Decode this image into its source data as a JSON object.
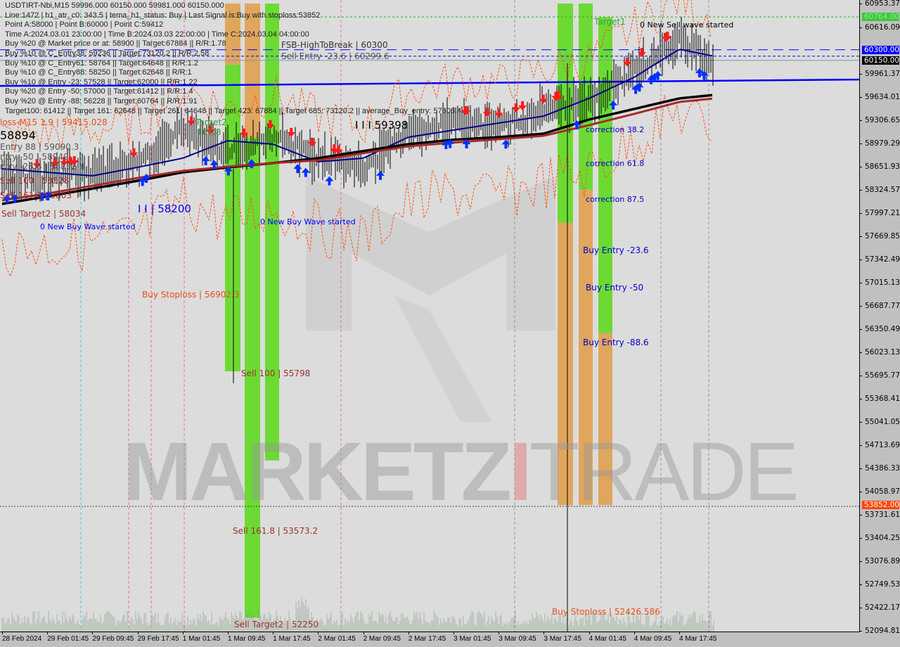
{
  "info_lines": [
    "USDTIRT-Nbi,M15  59996.000 60150.000 59981.000 60150.000",
    "Line:1472 | h1_atr_c0: 343.5 | tema_h1_status: Buy | Last Signal is:Buy with stoploss:53852",
    "Point A:58000 | Point B:60000 | Point C:59412",
    "Time A:2024.03.01 23:00:00 | Time B:2024.03.03 22:00:00 | Time C:2024.03.04 04:00:00",
    "Buy %20 @ Market price or at: 58900 || Target:67884 || R/R:1.78",
    "Buy %10 @ C_Entry38: 59236 || Target:73120.2 || R/R:2.58",
    "Buy %10 @ C_Entry61: 58764 || Target:64648 || R/R:1.2",
    "Buy %10 @ C_Entry88: 58250 || Target:62648 || R/R:1",
    "Buy %10 @ Entry -23: 57528 || Target:62000 || R/R:1.22",
    "Buy %20 @ Entry -50: 57000 || Target:61412 || R/R:1.4",
    "Buy %20 @ Entry -88: 56228 || Target:60764 || R/R:1.91",
    "Target100: 61412 || Target 161: 62648 || Target 261: 64648 || Target 423: 67884 || Target 685: 73120.2 || average_Buy_entry: 57803.4"
  ],
  "annotations": {
    "fsb": "FSB-HighToBreak | 60300",
    "sell_entry": "Sell Entry -23.6 | 60299.6",
    "target2": "Target2",
    "target2_level": "161.8",
    "loss_m15": "loss-M15 1.9 | 59415.028",
    "entry88": "Entry 88 | 59090.3",
    "entry50": "ntry -50 | 58949",
    "entry236": "ntry -23.6 | 58852.4",
    "big_58894": "58894",
    "sell100_a": "Sell 100 | 58528",
    "sell1618_a": "Sell 161.8 | 5803",
    "sell_target2_a": "Sell Target2 | 58034",
    "new_buy_1": "0 New Buy Wave started",
    "ii_58200": "I I | 58200",
    "iii_59398": "I I I 59398",
    "new_buy_2": "0 New Buy Wave started",
    "buy_stoploss_a": "Buy Stoploss | 56902.3",
    "sell100_b": "Sell 100 | 55798",
    "sell1618_b": "Sell 161.8 | 53573.2",
    "sell_target2_b": "Sell Target2 | 52250",
    "buy_stoploss_b": "Buy Stoploss | 52426.586",
    "corr382": "correction 38.2",
    "corr618": "correction 61.8",
    "corr875": "correction 87.5",
    "buy_entry_236": "Buy Entry -23.6",
    "buy_entry_50": "Buy Entry -50",
    "buy_entry_886": "Buy Entry -88.6",
    "target1": "Target1",
    "new_sell": "0 New Sell wave started"
  },
  "watermark": {
    "part1": "MARKETZ",
    "part2": "I",
    "part3": "TRADE"
  },
  "chart_data": {
    "type": "bar",
    "symbol": "USDTIRT-Nbi",
    "timeframe": "M15",
    "ylim": [
      52094.81,
      60953.37
    ],
    "y_ticks": [
      "60953.370",
      "60616.090",
      "59961.370",
      "59634.010",
      "59306.650",
      "58979.290",
      "58651.930",
      "58324.570",
      "57997.210",
      "57669.850",
      "57342.490",
      "57015.130",
      "56687.770",
      "56350.490",
      "56023.130",
      "55695.770",
      "55368.410",
      "55041.050",
      "54713.690",
      "54386.330",
      "54058.970",
      "53731.610",
      "53404.250",
      "53076.890",
      "52749.530",
      "52422.170",
      "52094.810"
    ],
    "y_tick_values": [
      60953.37,
      60616.09,
      59961.37,
      59634.01,
      59306.65,
      58979.29,
      58651.93,
      58324.57,
      57997.21,
      57669.85,
      57342.49,
      57015.13,
      56687.77,
      56350.49,
      56023.13,
      55695.77,
      55368.41,
      55041.05,
      54713.69,
      54386.33,
      54058.97,
      53731.61,
      53404.25,
      53076.89,
      52749.53,
      52422.17,
      52094.81
    ],
    "x_ticks": [
      "28 Feb 2024",
      "29 Feb 01:45",
      "29 Feb 09:45",
      "29 Feb 17:45",
      "1 Mar 01:45",
      "1 Mar 09:45",
      "1 Mar 17:45",
      "2 Mar 01:45",
      "2 Mar 09:45",
      "2 Mar 17:45",
      "3 Mar 01:45",
      "3 Mar 09:45",
      "3 Mar 17:45",
      "4 Mar 01:45",
      "4 Mar 09:45",
      "4 Mar 17:45"
    ],
    "x": [
      "2024-02-28 17:45",
      "2024-02-29 01:45",
      "2024-02-29 09:45",
      "2024-02-29 17:45",
      "2024-03-01 01:45",
      "2024-03-01 09:45",
      "2024-03-01 17:45",
      "2024-03-02 01:45",
      "2024-03-02 09:45",
      "2024-03-02 17:45",
      "2024-03-03 01:45",
      "2024-03-03 09:45",
      "2024-03-03 17:45",
      "2024-03-04 01:45",
      "2024-03-04 09:45",
      "2024-03-04 17:45",
      "2024-03-04 23:45"
    ],
    "series": [
      {
        "role": "price",
        "color": "#000000",
        "values": [
          58470,
          58520,
          58570,
          58670,
          59170,
          58870,
          59070,
          58770,
          58620,
          59120,
          59270,
          59220,
          59420,
          59560,
          60010,
          60410,
          60150
        ]
      },
      {
        "role": "ma-fast",
        "color": "#00008b",
        "values": [
          58620,
          58570,
          58520,
          58640,
          58769,
          59017,
          58967,
          58719,
          58769,
          59066,
          59166,
          59265,
          59364,
          59613,
          59911,
          60308,
          60209
        ]
      },
      {
        "role": "ma-slow",
        "color": "#000000",
        "values": [
          58123,
          58230,
          58340,
          58450,
          58570,
          58640,
          58700,
          58769,
          58870,
          58967,
          59030,
          59066,
          59116,
          59315,
          59464,
          59613,
          59662
        ]
      },
      {
        "role": "ma-mid",
        "color": "#a52a2a",
        "values": [
          58173,
          58270,
          58380,
          58490,
          58590,
          58650,
          58700,
          58739,
          58840,
          58937,
          58990,
          59037,
          59086,
          59235,
          59394,
          59563,
          59613
        ]
      }
    ],
    "levels": [
      {
        "price": 60764,
        "label": "60764.000",
        "color": "#22aa22",
        "style": "dashed",
        "tag_bg": "#3cc83c",
        "tag_fg": "#88ee88"
      },
      {
        "price": 60300,
        "label": "60300.000",
        "color": "#0000ff",
        "style": "longdash",
        "tag_bg": "#0000ff",
        "tag_fg": "#ffffff"
      },
      {
        "price": 60150,
        "label": "60150.000",
        "color": "#7a9aaa",
        "style": "solid",
        "tag_bg": "#000000",
        "tag_fg": "#ffffff"
      },
      {
        "price": 53852,
        "label": "53852.000",
        "color": "#444444",
        "style": "dotted",
        "tag_bg": "#ff4400",
        "tag_fg": "#ffffff"
      }
    ],
    "zones": [
      {
        "color": "#e0a050",
        "top": 60953,
        "bottom": 60090
      },
      {
        "color": "#5fd920",
        "top": 60090,
        "bottom": 55760
      },
      {
        "color": "#e0a050",
        "top": 60953,
        "bottom": 59060
      },
      {
        "color": "#5fd920",
        "top": 59060,
        "bottom": 52280
      },
      {
        "color": "#5fd920",
        "top": 60953,
        "bottom": 54500
      },
      {
        "color": "#5fd920",
        "top": 60953,
        "bottom": 57860
      },
      {
        "color": "#e0a050",
        "top": 57860,
        "bottom": 53870
      },
      {
        "color": "#5fd920",
        "top": 60953,
        "bottom": 58320
      },
      {
        "color": "#e0a050",
        "top": 58320,
        "bottom": 53870
      },
      {
        "color": "#5fd920",
        "top": 60760,
        "bottom": 56300
      },
      {
        "color": "#e0a050",
        "top": 56300,
        "bottom": 53870
      }
    ],
    "grid": false
  }
}
